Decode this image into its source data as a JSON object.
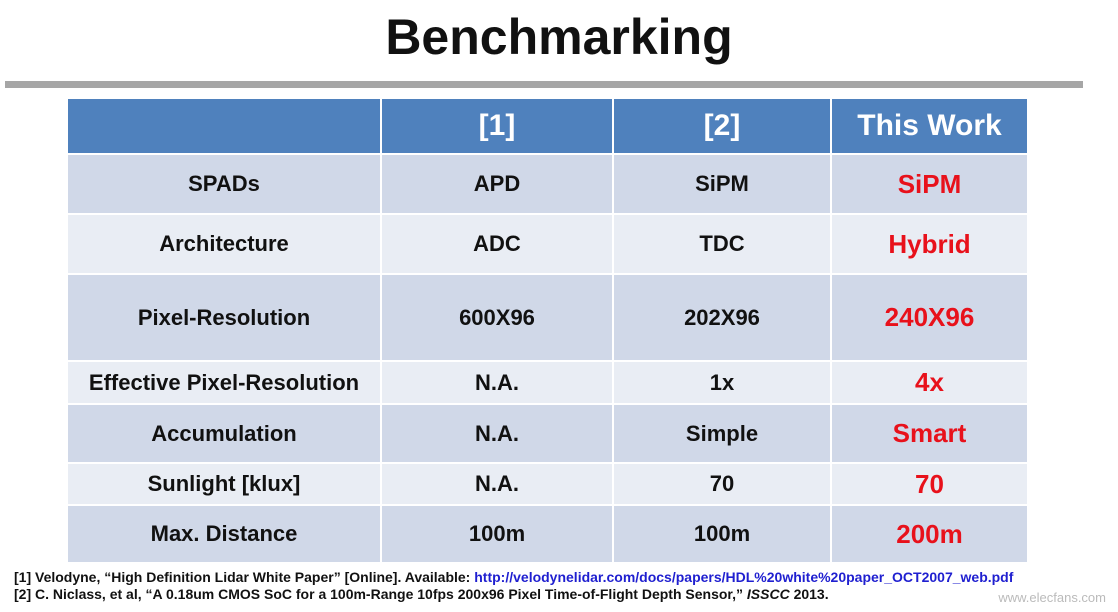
{
  "title": "Benchmarking",
  "table": {
    "header": [
      "",
      "[1]",
      "[2]",
      "This Work"
    ],
    "rows": [
      [
        "SPADs",
        "APD",
        "SiPM",
        "SiPM"
      ],
      [
        "Architecture",
        "ADC",
        "TDC",
        "Hybrid"
      ],
      [
        "Pixel-Resolution",
        "600X96",
        "202X96",
        "240X96"
      ],
      [
        "Effective Pixel-Resolution",
        "N.A.",
        "1x",
        "4x"
      ],
      [
        "Accumulation",
        "N.A.",
        "Simple",
        "Smart"
      ],
      [
        "Sunlight [klux]",
        "N.A.",
        "70",
        "70"
      ],
      [
        "Max. Distance",
        "100m",
        "100m",
        "200m"
      ]
    ]
  },
  "footnotes": [
    {
      "text": "[1] Velodyne, “High Definition Lidar White Paper” [Online]. Available: ",
      "link": "http://velodynelidar.com/docs/papers/HDL%20white%20paper_OCT2007_web.pdf"
    },
    {
      "text": "[2] C. Niclass, et al, “A 0.18um CMOS SoC for a 100m-Range 10fps 200x96 Pixel Time-of-Flight Depth Sensor,” ",
      "venue": "ISSCC",
      "suffix": " 2013."
    }
  ],
  "watermark": "www.elecfans.com"
}
